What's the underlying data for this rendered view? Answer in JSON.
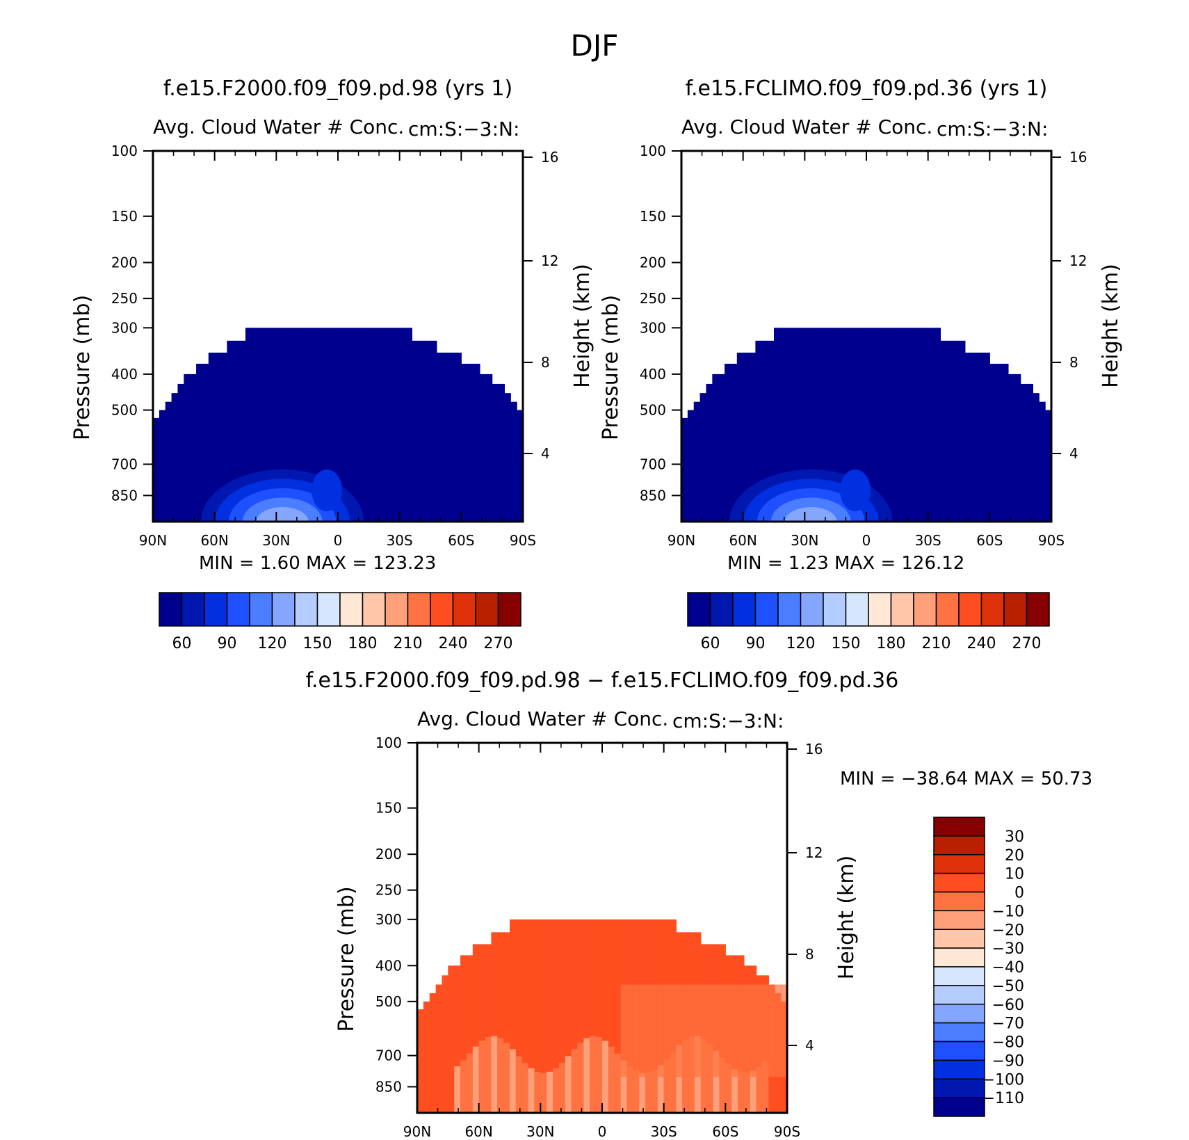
{
  "page": {
    "title": "DJF"
  },
  "colors": {
    "abs_scale": [
      "#00008f",
      "#0018b0",
      "#0030e0",
      "#1f50ff",
      "#4a7dff",
      "#85a6ff",
      "#b5ccff",
      "#d6e6ff",
      "#ffe7d6",
      "#ffc6aa",
      "#ffa07a",
      "#ff7342",
      "#ff4e1f",
      "#e0320a",
      "#b82000",
      "#870000"
    ],
    "diff_scale": [
      "#00008f",
      "#0018b0",
      "#0030e0",
      "#1f50ff",
      "#4a7dff",
      "#85a6ff",
      "#b5ccff",
      "#d6e6ff",
      "#ffe7d6",
      "#ffc6aa",
      "#ffa07a",
      "#ff7342",
      "#ff4e1f",
      "#e0320a",
      "#b82000",
      "#870000"
    ]
  },
  "chart_data": [
    {
      "id": "panel1",
      "type": "heatmap",
      "title": "f.e15.F2000.f09_f09.pd.98 (yrs 1)",
      "subtitle_left": "Avg. Cloud Water # Conc.",
      "subtitle_right": "cm:S:-3:N:",
      "ylabel": "Pressure (mb)",
      "ylabel_right": "Height (km)",
      "x_ticks": [
        "90N",
        "60N",
        "30N",
        "0",
        "30S",
        "60S",
        "90S"
      ],
      "y_ticks": [
        "100",
        "150",
        "200",
        "250",
        "300",
        "400",
        "500",
        "700",
        "850"
      ],
      "y_ticks_right": [
        "16",
        "12",
        "8",
        "4"
      ],
      "ylim": [
        100,
        1000
      ],
      "log_scale_y": true,
      "stats_text": "MIN =    1.60   MAX = 123.23",
      "min": 1.6,
      "max": 123.23,
      "colorbar": {
        "orientation": "horizontal",
        "labels": [
          "60",
          "90",
          "120",
          "150",
          "180",
          "210",
          "240",
          "270"
        ]
      }
    },
    {
      "id": "panel2",
      "type": "heatmap",
      "title": "f.e15.FCLIMO.f09_f09.pd.36 (yrs 1)",
      "subtitle_left": "Avg. Cloud Water # Conc.",
      "subtitle_right": "cm:S:-3:N:",
      "ylabel": "Pressure (mb)",
      "ylabel_right": "Height (km)",
      "x_ticks": [
        "90N",
        "60N",
        "30N",
        "0",
        "30S",
        "60S",
        "90S"
      ],
      "y_ticks": [
        "100",
        "150",
        "200",
        "250",
        "300",
        "400",
        "500",
        "700",
        "850"
      ],
      "y_ticks_right": [
        "16",
        "12",
        "8",
        "4"
      ],
      "ylim": [
        100,
        1000
      ],
      "log_scale_y": true,
      "stats_text": "MIN =    1.23   MAX = 126.12",
      "min": 1.23,
      "max": 126.12,
      "colorbar": {
        "orientation": "horizontal",
        "labels": [
          "60",
          "90",
          "120",
          "150",
          "180",
          "210",
          "240",
          "270"
        ]
      }
    },
    {
      "id": "panel3",
      "type": "heatmap",
      "title": "f.e15.F2000.f09_f09.pd.98 - f.e15.FCLIMO.f09_f09.pd.36",
      "subtitle_left": "Avg. Cloud Water # Conc.",
      "subtitle_right": "cm:S:-3:N:",
      "ylabel": "Pressure (mb)",
      "ylabel_right": "Height (km)",
      "x_ticks": [
        "90N",
        "60N",
        "30N",
        "0",
        "30S",
        "60S",
        "90S"
      ],
      "y_ticks": [
        "100",
        "150",
        "200",
        "250",
        "300",
        "400",
        "500",
        "700",
        "850"
      ],
      "y_ticks_right": [
        "16",
        "12",
        "8",
        "4"
      ],
      "ylim": [
        100,
        1000
      ],
      "log_scale_y": true,
      "stats_text": "MIN = -38.64   MAX =   50.73",
      "min": -38.64,
      "max": 50.73,
      "colorbar": {
        "orientation": "vertical",
        "labels": [
          "30",
          "20",
          "10",
          "0",
          "-10",
          "-20",
          "-30",
          "-40",
          "-50",
          "-60",
          "-70",
          "-80",
          "-90",
          "-100",
          "-110"
        ]
      }
    }
  ]
}
